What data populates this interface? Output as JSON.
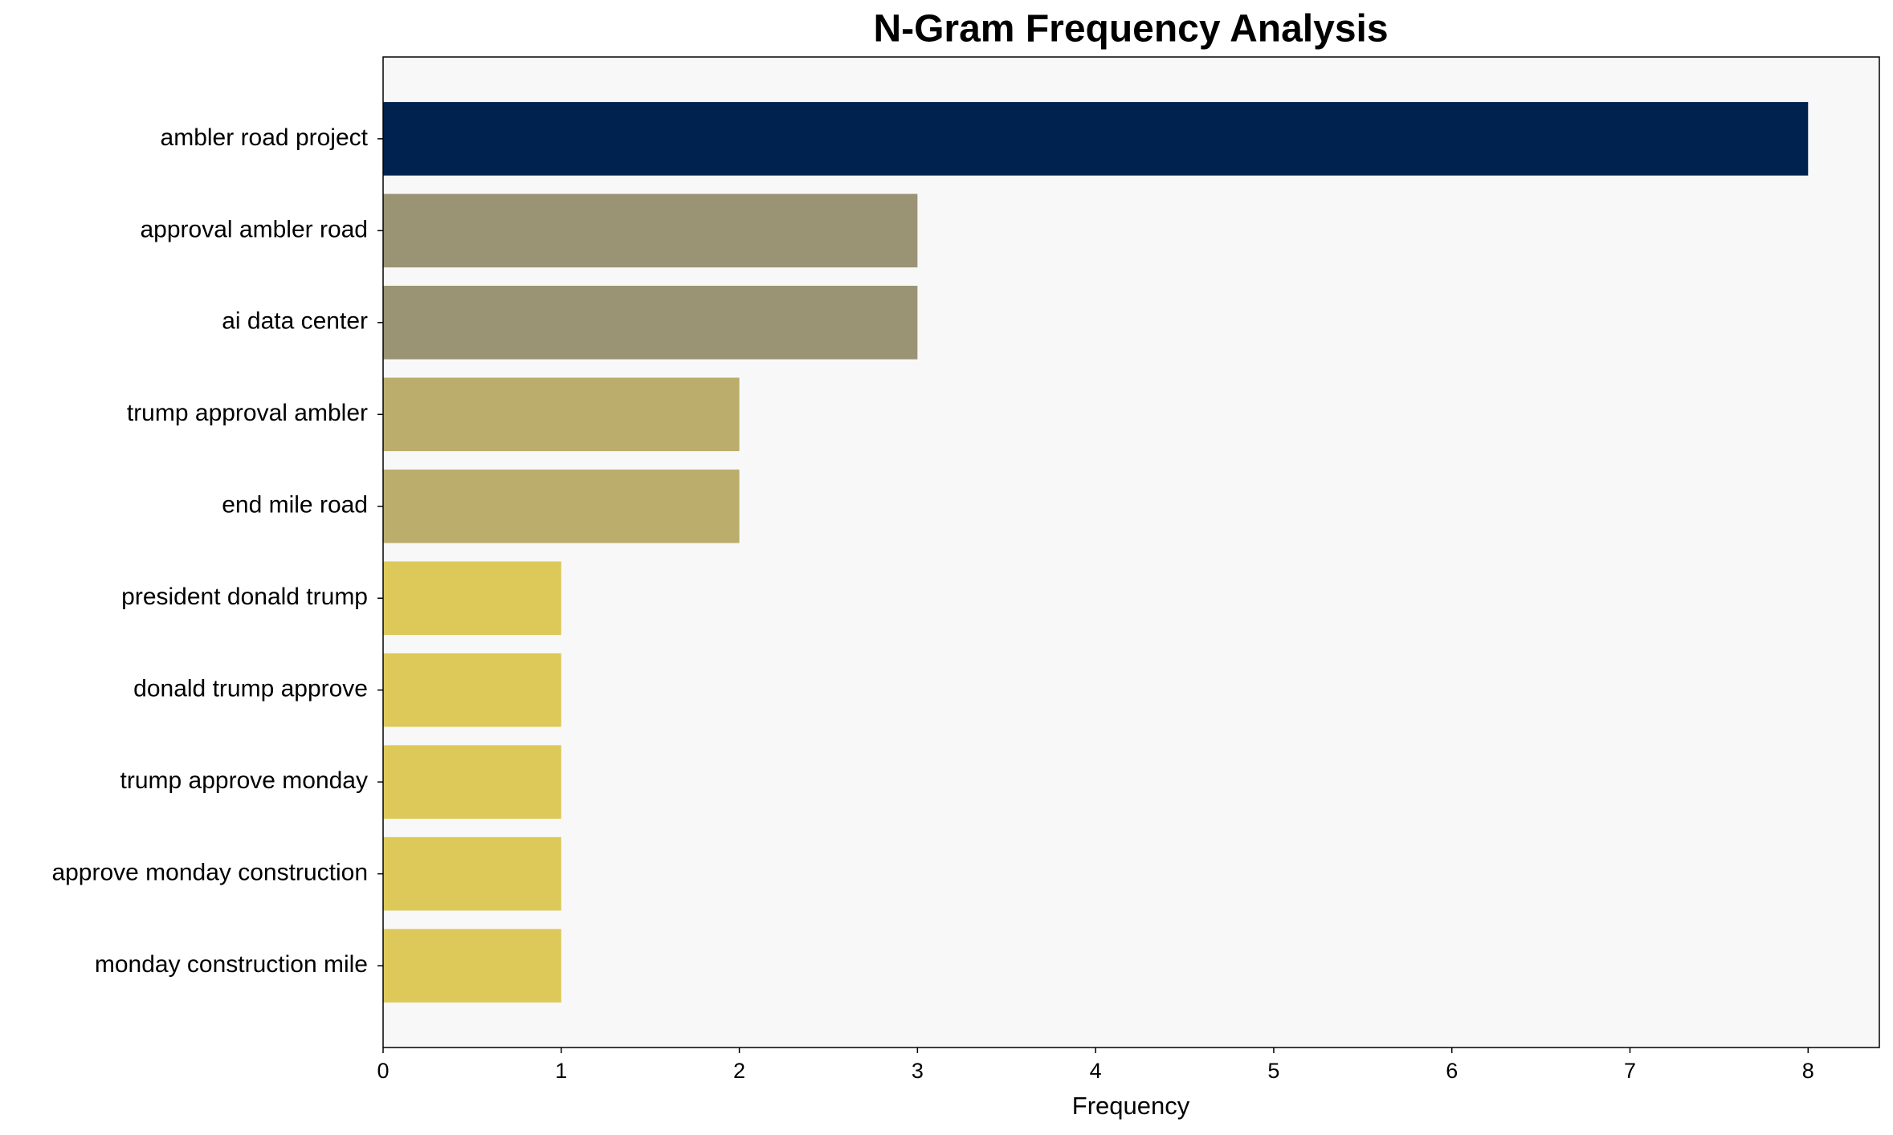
{
  "chart_data": {
    "type": "barh",
    "title": "N-Gram Frequency Analysis",
    "x_label": "Frequency",
    "categories": [
      "ambler road project",
      "approval ambler road",
      "ai data center",
      "trump approval ambler",
      "end mile road",
      "president donald trump",
      "donald trump approve",
      "trump approve monday",
      "approve monday construction",
      "monday construction mile"
    ],
    "values": [
      8,
      3,
      3,
      2,
      2,
      1,
      1,
      1,
      1,
      1
    ],
    "colors": [
      "#00224e",
      "#9a9374",
      "#9a9374",
      "#bbae6c",
      "#bbae6c",
      "#dcc95a",
      "#dcc95a",
      "#dcc95a",
      "#dcc95a",
      "#dcc95a"
    ],
    "xlim": [
      0,
      8.4
    ],
    "xticks": [
      0,
      1,
      2,
      3,
      4,
      5,
      6,
      7,
      8
    ],
    "grid": false
  }
}
